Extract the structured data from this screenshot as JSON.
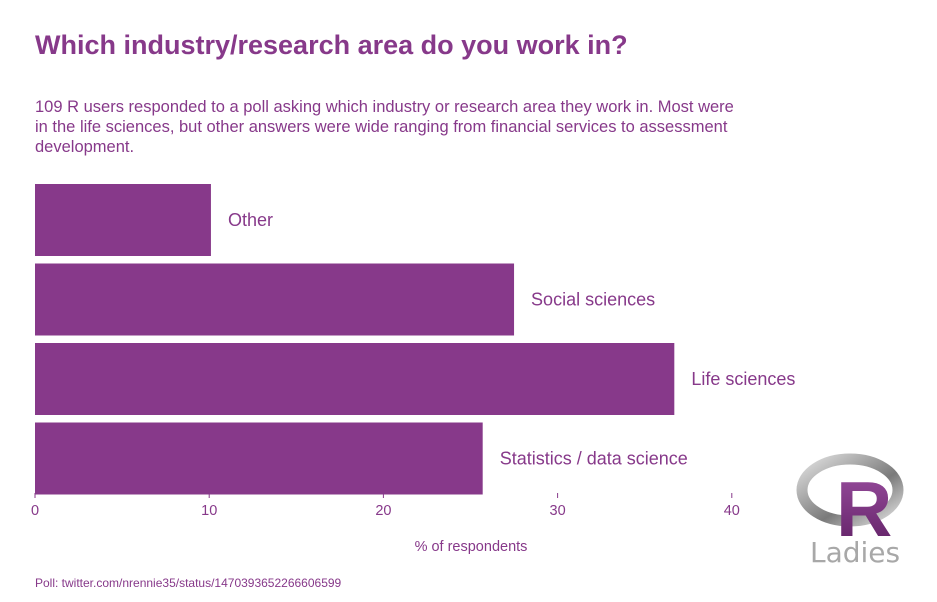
{
  "colors": {
    "accent": "#87398a",
    "text": "#87398a",
    "logo_ring_dark": "#7a7a7a",
    "logo_ring_light": "#e0e0e0",
    "logo_text": "#a8a8a8"
  },
  "chart_data": {
    "type": "bar",
    "orientation": "horizontal",
    "title": "Which industry/research area do you work in?",
    "subtitle_lines": [
      "109 R users responded to a poll asking which industry or research area they work in. Most were",
      "in the life sciences, but other answers were wide ranging from financial services to assessment",
      "development."
    ],
    "categories": [
      "Other",
      "Social sciences",
      "Life sciences",
      "Statistics / data science"
    ],
    "values": [
      10.1,
      27.5,
      36.7,
      25.7
    ],
    "xlabel": "% of respondents",
    "ylabel": "",
    "xlim": [
      0,
      50
    ],
    "xticks": [
      0,
      10,
      20,
      30,
      40
    ],
    "grid": false,
    "caption": "Poll: twitter.com/nrennie35/status/1470393652266606599"
  },
  "logo": {
    "letter": "R",
    "text": "Ladies"
  }
}
